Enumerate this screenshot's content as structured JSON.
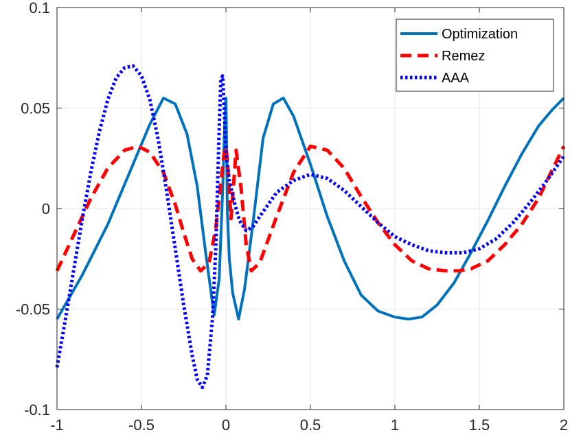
{
  "chart_data": {
    "type": "line",
    "title": "",
    "xlabel": "",
    "ylabel": "",
    "xlim": [
      -1,
      2
    ],
    "ylim": [
      -0.1,
      0.1
    ],
    "grid": true,
    "legend_position": "top-right",
    "x_ticks": [
      -1,
      -0.5,
      0,
      0.5,
      1,
      1.5,
      2
    ],
    "x_tick_labels": [
      "-1",
      "-0.5",
      "0",
      "0.5",
      "1",
      "1.5",
      "2"
    ],
    "y_ticks": [
      -0.1,
      -0.05,
      0,
      0.05,
      0.1
    ],
    "y_tick_labels": [
      "-0.1",
      "-0.05",
      "0",
      "0.05",
      "0.1"
    ],
    "series": [
      {
        "name": "Optimization",
        "color": "#0072bd",
        "style": "solid",
        "x": [
          -1,
          -0.85,
          -0.7,
          -0.55,
          -0.45,
          -0.37,
          -0.3,
          -0.23,
          -0.17,
          -0.12,
          -0.07,
          -0.04,
          -0.02,
          -0.008,
          0,
          0.003,
          0.008,
          0.02,
          0.04,
          0.075,
          0.11,
          0.16,
          0.22,
          0.28,
          0.34,
          0.4,
          0.5,
          0.6,
          0.7,
          0.8,
          0.9,
          1.0,
          1.08,
          1.16,
          1.25,
          1.35,
          1.45,
          1.55,
          1.65,
          1.75,
          1.85,
          1.93,
          2.0
        ],
        "y": [
          -0.055,
          -0.033,
          -0.008,
          0.022,
          0.042,
          0.055,
          0.052,
          0.037,
          0.011,
          -0.022,
          -0.053,
          -0.035,
          0.008,
          0.04,
          0.055,
          0.04,
          0.0,
          -0.025,
          -0.042,
          -0.055,
          -0.04,
          -0.007,
          0.035,
          0.052,
          0.055,
          0.046,
          0.022,
          -0.004,
          -0.026,
          -0.043,
          -0.051,
          -0.054,
          -0.055,
          -0.054,
          -0.048,
          -0.037,
          -0.022,
          -0.006,
          0.011,
          0.027,
          0.041,
          0.049,
          0.055
        ]
      },
      {
        "name": "Remez",
        "color": "#ff0000",
        "style": "dashed",
        "x": [
          -1,
          -0.9,
          -0.8,
          -0.7,
          -0.6,
          -0.52,
          -0.45,
          -0.37,
          -0.3,
          -0.25,
          -0.2,
          -0.15,
          -0.1,
          -0.06,
          -0.03,
          -0.01,
          0,
          0.01,
          0.03,
          0.06,
          0.09,
          0.12,
          0.15,
          0.2,
          0.3,
          0.4,
          0.5,
          0.6,
          0.7,
          0.8,
          0.9,
          1.0,
          1.1,
          1.2,
          1.3,
          1.38,
          1.45,
          1.55,
          1.65,
          1.75,
          1.85,
          1.93,
          2.0
        ],
        "y": [
          -0.031,
          -0.013,
          0.005,
          0.02,
          0.029,
          0.031,
          0.028,
          0.018,
          0.002,
          -0.012,
          -0.025,
          -0.031,
          -0.027,
          -0.01,
          0.013,
          0.028,
          0.031,
          0.022,
          -0.005,
          0.029,
          0.01,
          -0.018,
          -0.031,
          -0.027,
          -0.004,
          0.018,
          0.031,
          0.029,
          0.02,
          0.006,
          -0.007,
          -0.018,
          -0.026,
          -0.03,
          -0.031,
          -0.031,
          -0.03,
          -0.026,
          -0.018,
          -0.008,
          0.005,
          0.019,
          0.031
        ]
      },
      {
        "name": "AAA",
        "color": "#0000ff",
        "style": "dotted",
        "x": [
          -1,
          -0.95,
          -0.9,
          -0.85,
          -0.8,
          -0.75,
          -0.7,
          -0.65,
          -0.6,
          -0.55,
          -0.5,
          -0.45,
          -0.4,
          -0.35,
          -0.3,
          -0.25,
          -0.2,
          -0.17,
          -0.14,
          -0.11,
          -0.08,
          -0.06,
          -0.04,
          -0.03,
          -0.02,
          -0.01,
          0,
          0.02,
          0.05,
          0.08,
          0.12,
          0.16,
          0.2,
          0.25,
          0.3,
          0.4,
          0.5,
          0.6,
          0.7,
          0.8,
          0.9,
          1.0,
          1.1,
          1.2,
          1.3,
          1.4,
          1.5,
          1.6,
          1.7,
          1.8,
          1.9,
          2.0
        ],
        "y": [
          -0.079,
          -0.055,
          -0.03,
          -0.005,
          0.018,
          0.038,
          0.054,
          0.065,
          0.07,
          0.071,
          0.066,
          0.054,
          0.034,
          0.008,
          -0.02,
          -0.048,
          -0.073,
          -0.085,
          -0.089,
          -0.083,
          -0.055,
          -0.02,
          0.04,
          0.064,
          0.066,
          0.05,
          0.028,
          0.014,
          0.003,
          -0.006,
          -0.011,
          -0.009,
          -0.004,
          0.002,
          0.008,
          0.014,
          0.017,
          0.015,
          0.009,
          0.001,
          -0.007,
          -0.014,
          -0.018,
          -0.021,
          -0.022,
          -0.022,
          -0.02,
          -0.015,
          -0.007,
          0.003,
          0.014,
          0.026
        ]
      }
    ]
  }
}
